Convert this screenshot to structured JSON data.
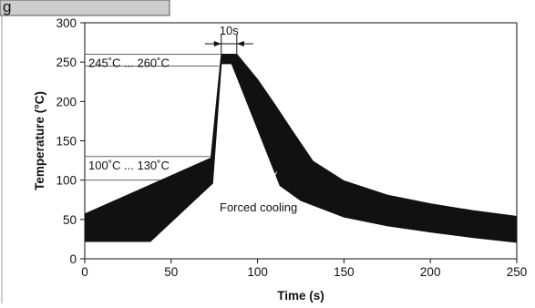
{
  "chart_data": {
    "type": "area",
    "title": "",
    "xlabel": "Time (s)",
    "ylabel": "Temperature (°C)",
    "xlim": [
      0,
      250
    ],
    "ylim": [
      0,
      300
    ],
    "x_ticks": [
      0,
      50,
      100,
      150,
      200,
      250
    ],
    "y_ticks": [
      0,
      50,
      100,
      150,
      200,
      250,
      300
    ],
    "x_tick_labels": [
      "0",
      "50",
      "100",
      "150",
      "200",
      "250"
    ],
    "y_tick_labels": [
      "0",
      "50",
      "100",
      "150",
      "200",
      "250",
      "300"
    ],
    "grid": false,
    "series": [
      {
        "upper": {
          "x": [
            0,
            73,
            79,
            88,
            100,
            110,
            120,
            132,
            150,
            175,
            200,
            225,
            250
          ],
          "y": [
            57,
            128,
            260,
            260,
            228,
            196,
            163,
            124,
            99,
            81,
            70,
            61,
            54
          ]
        },
        "lower": {
          "x": [
            0,
            38,
            74,
            79,
            85,
            100,
            113,
            125,
            150,
            175,
            200,
            225,
            250
          ],
          "y": [
            22,
            22,
            96,
            248,
            248,
            165,
            93,
            74,
            53,
            42,
            34,
            27,
            21
          ]
        },
        "color": "#111111"
      }
    ],
    "annotations": [
      {
        "text": "245˚C ... 260˚C",
        "y_range": [
          245,
          260
        ]
      },
      {
        "text": "100˚C ... 130˚C",
        "y_range": [
          100,
          130
        ]
      },
      {
        "text": "10s",
        "x_range": [
          79,
          88
        ]
      },
      {
        "text": "Forced cooling",
        "target": {
          "x": 108,
          "y": 150
        }
      }
    ]
  },
  "figure": {
    "tab_label": "g"
  }
}
